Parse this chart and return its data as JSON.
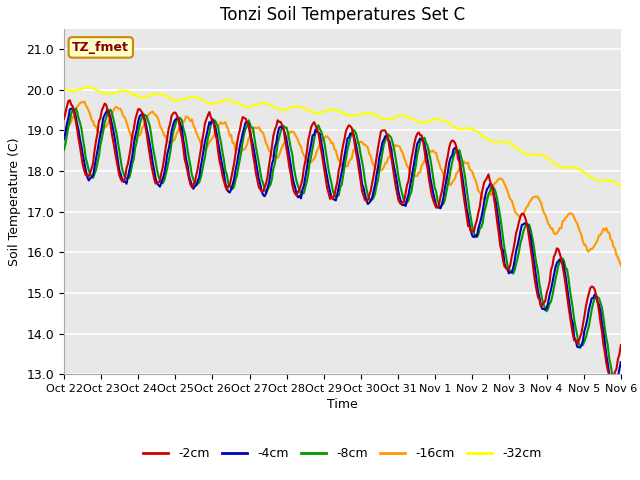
{
  "title": "Tonzi Soil Temperatures Set C",
  "xlabel": "Time",
  "ylabel": "Soil Temperature (C)",
  "ylim": [
    13.0,
    21.5
  ],
  "xtick_labels": [
    "Oct 22",
    "Oct 23",
    "Oct 24",
    "Oct 25",
    "Oct 26",
    "Oct 27",
    "Oct 28",
    "Oct 29",
    "Oct 30",
    "Oct 31",
    "Nov 1",
    "Nov 2",
    "Nov 3",
    "Nov 4",
    "Nov 5",
    "Nov 6"
  ],
  "ytick_values": [
    13.0,
    14.0,
    15.0,
    16.0,
    17.0,
    18.0,
    19.0,
    20.0,
    21.0
  ],
  "colors": {
    "-2cm": "#cc0000",
    "-4cm": "#0000bb",
    "-8cm": "#009900",
    "-16cm": "#ff9900",
    "-32cm": "#ffff00"
  },
  "legend_label": "TZ_fmet",
  "bg_color": "#e8e8e8",
  "n_points": 384,
  "pts_per_day": 24
}
